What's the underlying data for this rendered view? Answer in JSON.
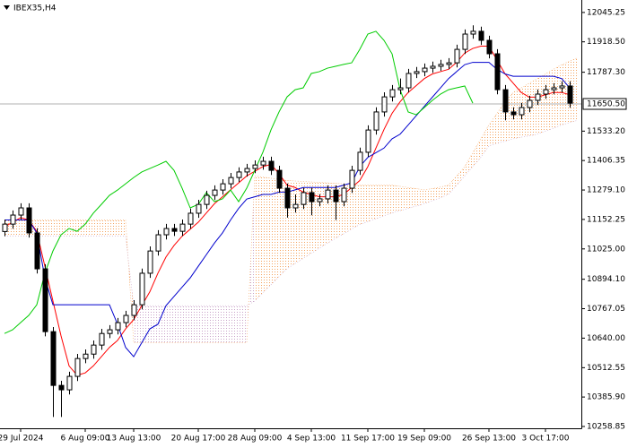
{
  "chart_data": {
    "type": "candlestick",
    "title": "IBEX35,H4",
    "categories": [
      null,
      null,
      "29 Jul 2024",
      null,
      null,
      null,
      null,
      null,
      null,
      null,
      "6 Aug 09:00",
      null,
      null,
      null,
      null,
      null,
      "13 Aug 13:00",
      null,
      null,
      null,
      null,
      null,
      null,
      null,
      "20 Aug 17:00",
      null,
      null,
      null,
      null,
      null,
      null,
      "28 Aug 09:00",
      null,
      null,
      null,
      null,
      null,
      null,
      "4 Sep 13:00",
      null,
      null,
      null,
      null,
      null,
      null,
      "11 Sep 17:00",
      null,
      null,
      null,
      null,
      null,
      null,
      "19 Sep 09:00",
      null,
      null,
      null,
      null,
      null,
      null,
      null,
      "26 Sep 13:00",
      null,
      null,
      null,
      null,
      null,
      null,
      "3 Oct 17:00",
      null,
      null,
      null,
      null
    ],
    "open": [
      11100,
      11132,
      11171,
      11202,
      11094,
      10939,
      10668,
      10436,
      10417,
      10475,
      10552,
      10571,
      10610,
      10660,
      10676,
      10707,
      10738,
      10784,
      10920,
      11016,
      11086,
      11113,
      11101,
      11132,
      11179,
      11217,
      11256,
      11279,
      11306,
      11333,
      11357,
      11372,
      11387,
      11403,
      11364,
      11287,
      11202,
      11217,
      11268,
      11229,
      11241,
      11279,
      11229,
      11287,
      11364,
      11442,
      11538,
      11616,
      11681,
      11712,
      11720,
      11782,
      11790,
      11805,
      11813,
      11821,
      11828,
      11886,
      11952,
      11964,
      11925,
      11867,
      11712,
      11616,
      11604,
      11635,
      11666,
      11693,
      11712,
      11720,
      11728,
      null
    ],
    "high": [
      11152,
      11191,
      11222,
      11222,
      11114,
      10959,
      10688,
      10456,
      10495,
      10572,
      10591,
      10630,
      10680,
      10696,
      10727,
      10758,
      10804,
      10940,
      11036,
      11106,
      11133,
      11133,
      11152,
      11199,
      11237,
      11276,
      11299,
      11326,
      11353,
      11377,
      11392,
      11407,
      11423,
      11423,
      11384,
      11307,
      11260,
      11288,
      11288,
      11261,
      11299,
      11299,
      11307,
      11384,
      11462,
      11558,
      11636,
      11701,
      11732,
      11760,
      11802,
      11810,
      11825,
      11833,
      11841,
      11848,
      11906,
      11972,
      11990,
      11984,
      11945,
      11887,
      11732,
      11636,
      11655,
      11686,
      11713,
      11732,
      11740,
      11748,
      11748,
      null
    ],
    "low": [
      11080,
      11112,
      11151,
      11074,
      10919,
      10648,
      10300,
      10300,
      10397,
      10455,
      10532,
      10551,
      10590,
      10640,
      10656,
      10687,
      10718,
      10764,
      10900,
      10996,
      11066,
      11081,
      11081,
      11112,
      11159,
      11197,
      11236,
      11259,
      11286,
      11313,
      11337,
      11352,
      11367,
      11344,
      11267,
      11160,
      11182,
      11197,
      11170,
      11209,
      11221,
      11150,
      11209,
      11267,
      11344,
      11422,
      11518,
      11596,
      11661,
      11692,
      11700,
      11762,
      11770,
      11785,
      11793,
      11801,
      11808,
      11866,
      11932,
      11905,
      11847,
      11692,
      11580,
      11584,
      11584,
      11615,
      11646,
      11673,
      11692,
      11700,
      11634,
      null
    ],
    "close": [
      11132,
      11171,
      11202,
      11094,
      10939,
      10668,
      10436,
      10417,
      10475,
      10552,
      10571,
      10610,
      10660,
      10676,
      10707,
      10738,
      10784,
      10920,
      11016,
      11086,
      11113,
      11101,
      11132,
      11179,
      11217,
      11256,
      11279,
      11306,
      11333,
      11357,
      11372,
      11387,
      11403,
      11364,
      11287,
      11202,
      11217,
      11268,
      11229,
      11241,
      11279,
      11229,
      11287,
      11364,
      11442,
      11538,
      11616,
      11681,
      11712,
      11720,
      11782,
      11790,
      11805,
      11813,
      11821,
      11828,
      11886,
      11952,
      11964,
      11925,
      11867,
      11712,
      11616,
      11604,
      11635,
      11666,
      11693,
      11712,
      11720,
      11728,
      11654,
      null
    ],
    "series": [
      {
        "color": "#ff0000",
        "values": [
          11120,
          11140,
          11160,
          11150,
          11100,
          10950,
          10800,
          10650,
          10520,
          10480,
          10490,
          10520,
          10560,
          10600,
          10630,
          10680,
          10720,
          10780,
          10840,
          10920,
          10990,
          11040,
          11080,
          11110,
          11140,
          11180,
          11220,
          11250,
          11280,
          11310,
          11340,
          11360,
          11380,
          11390,
          11350,
          11300,
          11290,
          11270,
          11260,
          11250,
          11250,
          11250,
          11260,
          11290,
          11320,
          11380,
          11460,
          11540,
          11610,
          11660,
          11700,
          11730,
          11760,
          11780,
          11790,
          11800,
          11830,
          11870,
          11890,
          11900,
          11900,
          11840,
          11780,
          11740,
          11700,
          11680,
          11680,
          11690,
          11700,
          11700,
          11690,
          null
        ]
      },
      {
        "color": "#0000cd",
        "values": [
          11150,
          11150,
          11150,
          11150,
          11094,
          10900,
          10784,
          10784,
          10784,
          10784,
          10784,
          10784,
          10784,
          10784,
          10700,
          10600,
          10560,
          10620,
          10680,
          10700,
          10780,
          10820,
          10860,
          10900,
          10950,
          11000,
          11050,
          11094,
          11150,
          11200,
          11240,
          11250,
          11260,
          11260,
          11270,
          11270,
          11280,
          11290,
          11290,
          11290,
          11290,
          11290,
          11300,
          11310,
          11380,
          11420,
          11440,
          11460,
          11500,
          11520,
          11560,
          11600,
          11640,
          11680,
          11720,
          11760,
          11790,
          11820,
          11830,
          11830,
          11830,
          11800,
          11780,
          11770,
          11770,
          11770,
          11770,
          11770,
          11770,
          11760,
          11720,
          null
        ]
      },
      {
        "color": "#00cc00",
        "values": [
          10660,
          10676,
          10707,
          10738,
          10784,
          10920,
          11016,
          11086,
          11113,
          11101,
          11132,
          11179,
          11217,
          11256,
          11279,
          11306,
          11333,
          11357,
          11372,
          11387,
          11403,
          11364,
          11287,
          11202,
          11217,
          11268,
          11229,
          11241,
          11279,
          11229,
          11287,
          11364,
          11442,
          11538,
          11616,
          11681,
          11712,
          11720,
          11782,
          11790,
          11805,
          11813,
          11821,
          11828,
          11886,
          11952,
          11964,
          11925,
          11867,
          11712,
          11616,
          11604,
          11635,
          11666,
          11693,
          11712,
          11720,
          11728,
          11654,
          null,
          null,
          null,
          null,
          null,
          null,
          null,
          null,
          null,
          null,
          null,
          null,
          null
        ]
      }
    ],
    "cloud": {
      "up_color": "#f4a460",
      "down_color": "#c8a2c8",
      "span_a": [
        11150,
        11150,
        11150,
        11150,
        11150,
        11150,
        11150,
        11150,
        11150,
        11150,
        11150,
        11150,
        11150,
        11150,
        11150,
        11150,
        10620,
        10620,
        10620,
        10620,
        10620,
        10620,
        10620,
        10620,
        10620,
        10620,
        10620,
        10620,
        10620,
        10620,
        10620,
        11340,
        11335,
        11330,
        11325,
        11320,
        11318,
        11316,
        11314,
        11312,
        11310,
        11308,
        11306,
        11303,
        11300,
        11300,
        11300,
        11300,
        11300,
        11295,
        11290,
        11285,
        11280,
        11285,
        11292,
        11300,
        11340,
        11380,
        11440,
        11500,
        11560,
        11610,
        11660,
        11700,
        11720,
        11740,
        11760,
        11780,
        11800,
        11820,
        11835,
        11850
      ],
      "span_b": [
        11080,
        11080,
        11080,
        11080,
        11080,
        11080,
        11080,
        11080,
        11080,
        11080,
        11080,
        11080,
        11080,
        11080,
        11080,
        11080,
        10780,
        10780,
        10780,
        10780,
        10780,
        10780,
        10780,
        10780,
        10780,
        10780,
        10780,
        10780,
        10780,
        10780,
        10780,
        10800,
        10835,
        10870,
        10905,
        10940,
        10962,
        10984,
        11006,
        11028,
        11050,
        11070,
        11090,
        11110,
        11130,
        11142,
        11155,
        11168,
        11180,
        11190,
        11200,
        11210,
        11220,
        11233,
        11246,
        11260,
        11300,
        11340,
        11380,
        11420,
        11470,
        11480,
        11490,
        11500,
        11507,
        11513,
        11520,
        11533,
        11546,
        11560,
        11570,
        11580
      ]
    },
    "last_price": {
      "value": 11650.5,
      "label": "11650.50"
    },
    "ylim": [
      10251,
      12099
    ],
    "yticks": [
      {
        "value": 12045.25,
        "label": "12045.25"
      },
      {
        "value": 11918.5,
        "label": "11918.50"
      },
      {
        "value": 11787.3,
        "label": "11787.30"
      },
      {
        "value": 11533.2,
        "label": "11533.20"
      },
      {
        "value": 11406.35,
        "label": "11406.35"
      },
      {
        "value": 11279.1,
        "label": "11279.10"
      },
      {
        "value": 11152.25,
        "label": "11152.25"
      },
      {
        "value": 11025,
        "label": "11025.00"
      },
      {
        "value": 10894.1,
        "label": "10894.10"
      },
      {
        "value": 10767.05,
        "label": "10767.05"
      },
      {
        "value": 10640,
        "label": "10640.00"
      },
      {
        "value": 10512.55,
        "label": "10512.55"
      },
      {
        "value": 10385.9,
        "label": "10385.90"
      },
      {
        "value": 10258.85,
        "label": "10258.85"
      }
    ]
  }
}
